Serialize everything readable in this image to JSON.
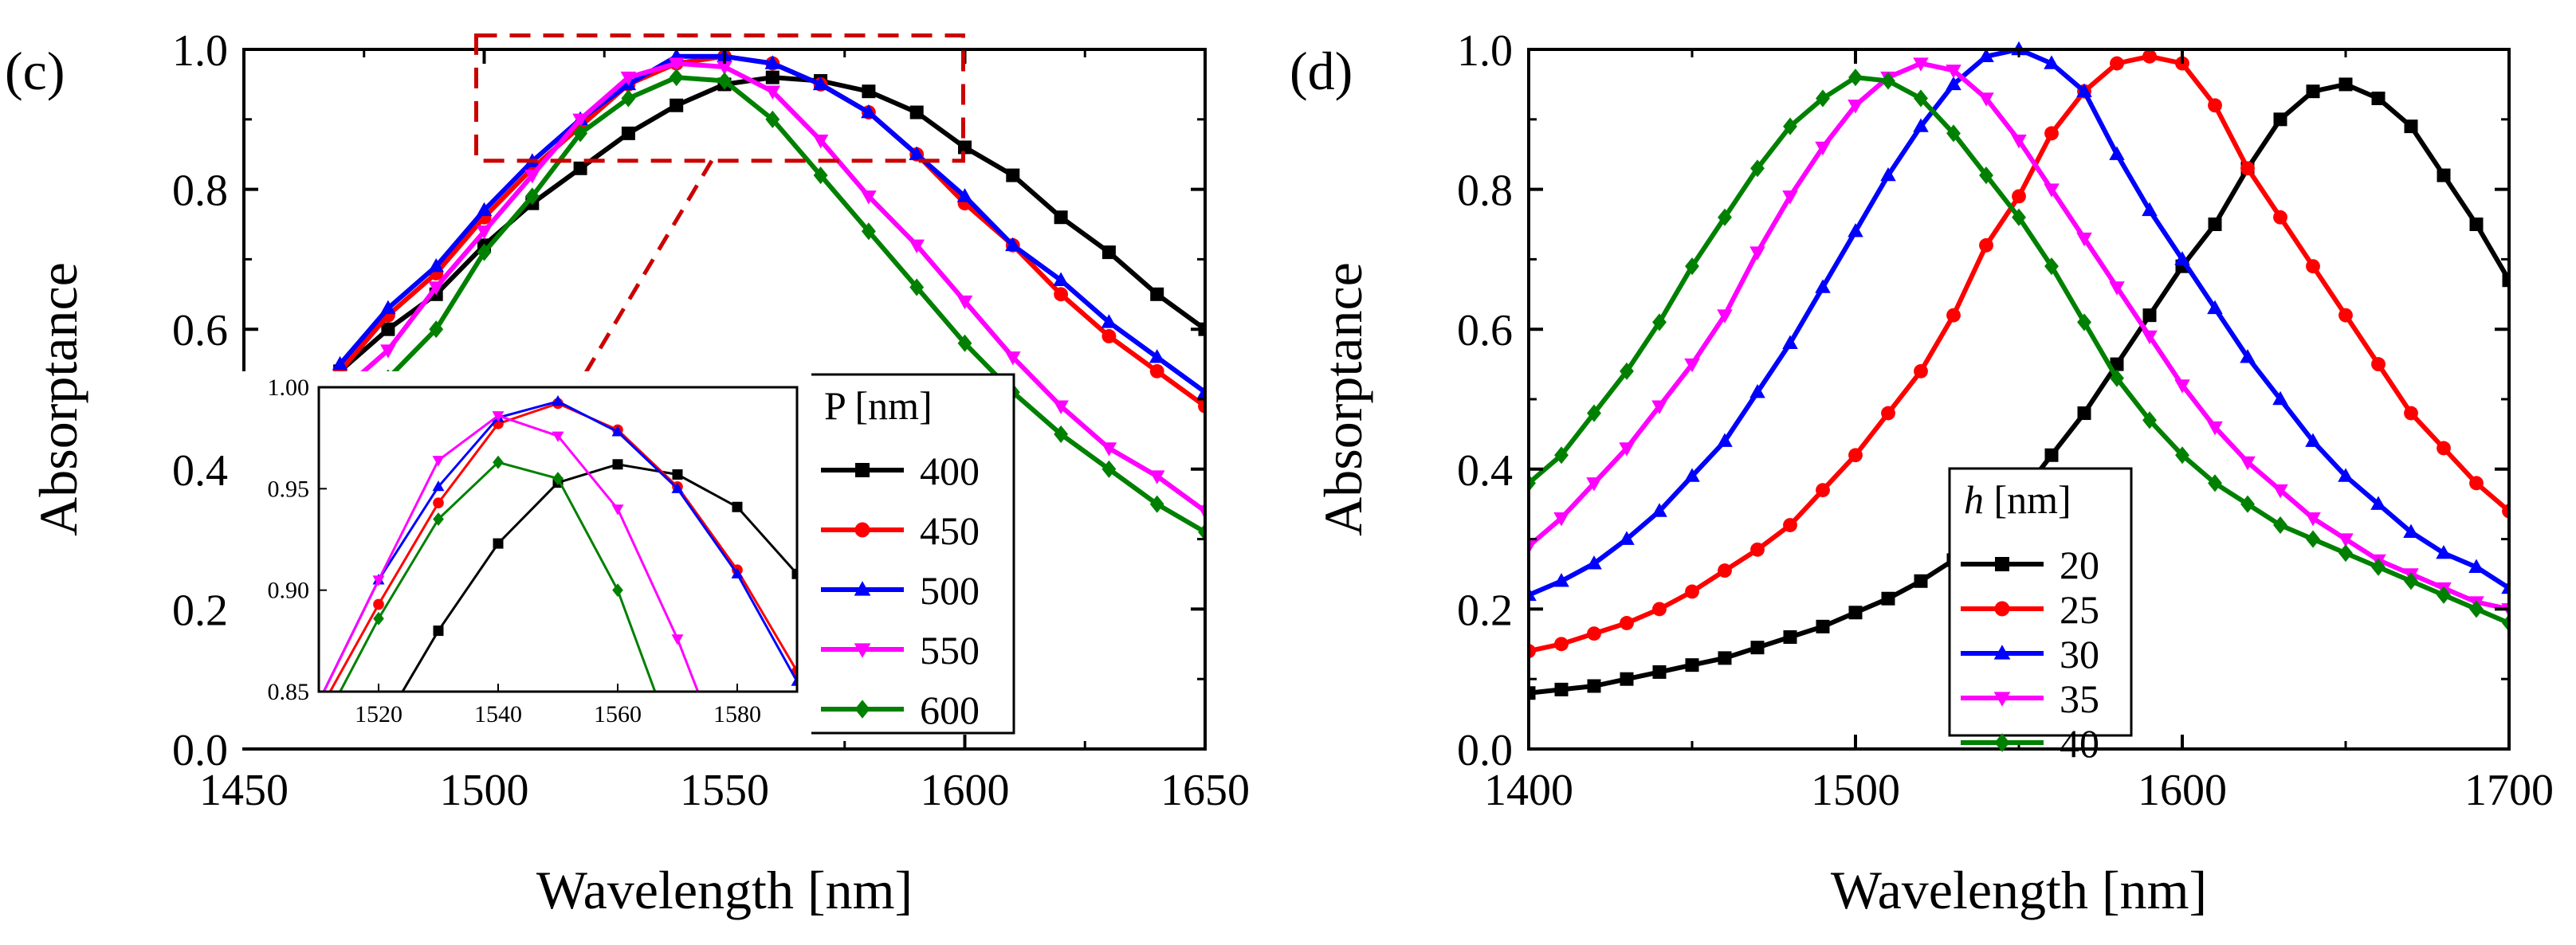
{
  "chart_data": [
    {
      "panel": "(c)",
      "type": "line",
      "xlabel": "Wavelength [nm]",
      "ylabel": "Absorptance",
      "xlim": [
        1450,
        1650
      ],
      "ylim": [
        0.0,
        1.0
      ],
      "xticks": [
        "1450",
        "1500",
        "1550",
        "1600",
        "1650"
      ],
      "yticks": [
        "0.0",
        "0.2",
        "0.4",
        "0.6",
        "0.8",
        "1.0"
      ],
      "legend_title": "P [nm]",
      "legend_position": "inside-right",
      "zoom_box": {
        "x": [
          1500,
          1598
        ],
        "y": [
          0.85,
          1.02
        ]
      },
      "series": [
        {
          "name": "400",
          "color": "#000000",
          "marker": "square",
          "x": [
            1470,
            1480,
            1490,
            1500,
            1510,
            1520,
            1530,
            1540,
            1550,
            1560,
            1570,
            1580,
            1590,
            1600,
            1610,
            1620,
            1630,
            1640,
            1650
          ],
          "y": [
            0.54,
            0.6,
            0.65,
            0.72,
            0.78,
            0.83,
            0.88,
            0.92,
            0.95,
            0.96,
            0.955,
            0.94,
            0.91,
            0.86,
            0.82,
            0.76,
            0.71,
            0.65,
            0.6
          ]
        },
        {
          "name": "450",
          "color": "#ff0000",
          "marker": "circle",
          "x": [
            1470,
            1480,
            1490,
            1500,
            1510,
            1520,
            1530,
            1540,
            1550,
            1560,
            1570,
            1580,
            1590,
            1600,
            1610,
            1620,
            1630,
            1640,
            1650
          ],
          "y": [
            0.54,
            0.62,
            0.68,
            0.76,
            0.83,
            0.89,
            0.95,
            0.98,
            0.99,
            0.98,
            0.95,
            0.91,
            0.85,
            0.78,
            0.72,
            0.65,
            0.59,
            0.54,
            0.49
          ]
        },
        {
          "name": "500",
          "color": "#0000ff",
          "marker": "triangle-up",
          "x": [
            1470,
            1480,
            1490,
            1500,
            1510,
            1520,
            1530,
            1540,
            1550,
            1560,
            1570,
            1580,
            1590,
            1600,
            1610,
            1620,
            1630,
            1640,
            1650
          ],
          "y": [
            0.55,
            0.63,
            0.69,
            0.77,
            0.84,
            0.9,
            0.95,
            0.99,
            0.99,
            0.98,
            0.95,
            0.91,
            0.85,
            0.79,
            0.72,
            0.67,
            0.61,
            0.56,
            0.51
          ]
        },
        {
          "name": "550",
          "color": "#ff00ff",
          "marker": "triangle-down",
          "x": [
            1470,
            1480,
            1490,
            1500,
            1510,
            1520,
            1530,
            1540,
            1550,
            1560,
            1570,
            1580,
            1590,
            1600,
            1610,
            1620,
            1630,
            1640,
            1650
          ],
          "y": [
            0.51,
            0.57,
            0.66,
            0.74,
            0.82,
            0.9,
            0.96,
            0.98,
            0.975,
            0.94,
            0.87,
            0.79,
            0.72,
            0.64,
            0.56,
            0.49,
            0.43,
            0.39,
            0.34
          ]
        },
        {
          "name": "600",
          "color": "#008000",
          "marker": "diamond",
          "x": [
            1470,
            1480,
            1490,
            1500,
            1510,
            1520,
            1530,
            1540,
            1550,
            1560,
            1570,
            1580,
            1590,
            1600,
            1610,
            1620,
            1630,
            1640,
            1650
          ],
          "y": [
            0.46,
            0.53,
            0.6,
            0.71,
            0.79,
            0.88,
            0.93,
            0.96,
            0.955,
            0.9,
            0.82,
            0.74,
            0.66,
            0.58,
            0.51,
            0.45,
            0.4,
            0.35,
            0.31
          ]
        }
      ],
      "inset": {
        "xlim": [
          1510,
          1590
        ],
        "ylim": [
          0.85,
          1.0
        ],
        "xticks": [
          "1520",
          "1540",
          "1560",
          "1580"
        ],
        "yticks": [
          "0.85",
          "0.90",
          "0.95",
          "1.00"
        ],
        "series": [
          {
            "name": "400",
            "color": "#000000",
            "marker": "square",
            "x": [
              1520,
              1530,
              1540,
              1550,
              1560,
              1570,
              1580,
              1590
            ],
            "y": [
              0.83,
              0.88,
              0.923,
              0.953,
              0.962,
              0.957,
              0.941,
              0.908
            ]
          },
          {
            "name": "450",
            "color": "#ff0000",
            "marker": "circle",
            "x": [
              1510,
              1520,
              1530,
              1540,
              1550,
              1560,
              1570,
              1580,
              1590
            ],
            "y": [
              0.84,
              0.893,
              0.943,
              0.982,
              0.992,
              0.979,
              0.951,
              0.91,
              0.86
            ]
          },
          {
            "name": "500",
            "color": "#0000ff",
            "marker": "triangle-up",
            "x": [
              1510,
              1520,
              1530,
              1540,
              1550,
              1560,
              1570,
              1580,
              1590
            ],
            "y": [
              0.845,
              0.905,
              0.951,
              0.985,
              0.993,
              0.978,
              0.95,
              0.908,
              0.855
            ]
          },
          {
            "name": "550",
            "color": "#ff00ff",
            "marker": "triangle-down",
            "x": [
              1510,
              1520,
              1530,
              1540,
              1550,
              1560,
              1570,
              1580
            ],
            "y": [
              0.845,
              0.905,
              0.964,
              0.986,
              0.976,
              0.94,
              0.876,
              0.8
            ]
          },
          {
            "name": "600",
            "color": "#008000",
            "marker": "diamond",
            "x": [
              1510,
              1520,
              1530,
              1540,
              1550,
              1560,
              1570
            ],
            "y": [
              0.83,
              0.886,
              0.935,
              0.963,
              0.955,
              0.9,
              0.82
            ]
          }
        ]
      }
    },
    {
      "panel": "(d)",
      "type": "line",
      "xlabel": "Wavelength [nm]",
      "ylabel": "Absorptance",
      "xlim": [
        1400,
        1700
      ],
      "ylim": [
        0.0,
        1.0
      ],
      "xticks": [
        "1400",
        "1500",
        "1600",
        "1700"
      ],
      "yticks": [
        "0.0",
        "0.2",
        "0.4",
        "0.6",
        "0.8",
        "1.0"
      ],
      "legend_title_italic": "h",
      "legend_title_rest": " [nm]",
      "legend_position": "inside-center-right",
      "series": [
        {
          "name": "20",
          "color": "#000000",
          "marker": "square",
          "x": [
            1400,
            1410,
            1420,
            1430,
            1440,
            1450,
            1460,
            1470,
            1480,
            1490,
            1500,
            1510,
            1520,
            1530,
            1540,
            1550,
            1560,
            1570,
            1580,
            1590,
            1600,
            1610,
            1620,
            1630,
            1640,
            1650,
            1660,
            1670,
            1680,
            1690,
            1700
          ],
          "y": [
            0.08,
            0.085,
            0.09,
            0.1,
            0.11,
            0.12,
            0.13,
            0.145,
            0.16,
            0.175,
            0.195,
            0.215,
            0.24,
            0.27,
            0.31,
            0.36,
            0.42,
            0.48,
            0.55,
            0.62,
            0.69,
            0.75,
            0.83,
            0.9,
            0.94,
            0.95,
            0.93,
            0.89,
            0.82,
            0.75,
            0.67
          ]
        },
        {
          "name": "25",
          "color": "#ff0000",
          "marker": "circle",
          "x": [
            1400,
            1410,
            1420,
            1430,
            1440,
            1450,
            1460,
            1470,
            1480,
            1490,
            1500,
            1510,
            1520,
            1530,
            1540,
            1550,
            1560,
            1570,
            1580,
            1590,
            1600,
            1610,
            1620,
            1630,
            1640,
            1650,
            1660,
            1670,
            1680,
            1690,
            1700
          ],
          "y": [
            0.14,
            0.15,
            0.165,
            0.18,
            0.2,
            0.225,
            0.255,
            0.285,
            0.32,
            0.37,
            0.42,
            0.48,
            0.54,
            0.62,
            0.72,
            0.79,
            0.88,
            0.94,
            0.98,
            0.99,
            0.98,
            0.92,
            0.83,
            0.76,
            0.69,
            0.62,
            0.55,
            0.48,
            0.43,
            0.38,
            0.34
          ]
        },
        {
          "name": "30",
          "color": "#0000ff",
          "marker": "triangle-up",
          "x": [
            1400,
            1410,
            1420,
            1430,
            1440,
            1450,
            1460,
            1470,
            1480,
            1490,
            1500,
            1510,
            1520,
            1530,
            1540,
            1550,
            1560,
            1570,
            1580,
            1590,
            1600,
            1610,
            1620,
            1630,
            1640,
            1650,
            1660,
            1670,
            1680,
            1690,
            1700
          ],
          "y": [
            0.22,
            0.24,
            0.265,
            0.3,
            0.34,
            0.39,
            0.44,
            0.51,
            0.58,
            0.66,
            0.74,
            0.82,
            0.89,
            0.95,
            0.99,
            1.0,
            0.98,
            0.94,
            0.85,
            0.77,
            0.7,
            0.63,
            0.56,
            0.5,
            0.44,
            0.39,
            0.35,
            0.31,
            0.28,
            0.26,
            0.23
          ]
        },
        {
          "name": "35",
          "color": "#ff00ff",
          "marker": "triangle-down",
          "x": [
            1400,
            1410,
            1420,
            1430,
            1440,
            1450,
            1460,
            1470,
            1480,
            1490,
            1500,
            1510,
            1520,
            1530,
            1540,
            1550,
            1560,
            1570,
            1580,
            1590,
            1600,
            1610,
            1620,
            1630,
            1640,
            1650,
            1660,
            1670,
            1680,
            1690,
            1700
          ],
          "y": [
            0.29,
            0.33,
            0.38,
            0.43,
            0.49,
            0.55,
            0.62,
            0.71,
            0.79,
            0.86,
            0.92,
            0.96,
            0.98,
            0.97,
            0.93,
            0.87,
            0.8,
            0.73,
            0.66,
            0.59,
            0.52,
            0.46,
            0.41,
            0.37,
            0.33,
            0.3,
            0.27,
            0.25,
            0.23,
            0.21,
            0.2
          ]
        },
        {
          "name": "40",
          "color": "#008000",
          "marker": "diamond",
          "x": [
            1400,
            1410,
            1420,
            1430,
            1440,
            1450,
            1460,
            1470,
            1480,
            1490,
            1500,
            1510,
            1520,
            1530,
            1540,
            1550,
            1560,
            1570,
            1580,
            1590,
            1600,
            1610,
            1620,
            1630,
            1640,
            1650,
            1660,
            1670,
            1680,
            1690,
            1700
          ],
          "y": [
            0.38,
            0.42,
            0.48,
            0.54,
            0.61,
            0.69,
            0.76,
            0.83,
            0.89,
            0.93,
            0.96,
            0.955,
            0.93,
            0.88,
            0.82,
            0.76,
            0.69,
            0.61,
            0.53,
            0.47,
            0.42,
            0.38,
            0.35,
            0.32,
            0.3,
            0.28,
            0.26,
            0.24,
            0.22,
            0.2,
            0.18
          ]
        }
      ]
    }
  ]
}
